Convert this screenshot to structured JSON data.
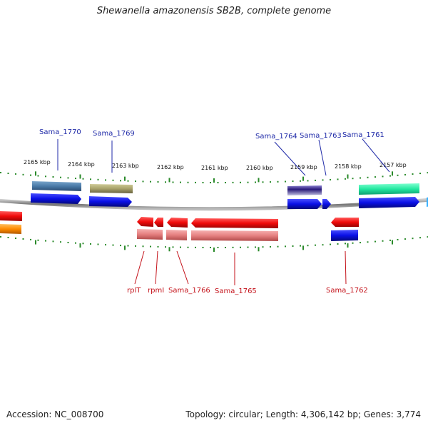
{
  "title": "Shewanella amazonensis SB2B, complete genome",
  "footer": {
    "accession": "Accession: NC_008700",
    "summary": "Topology: circular; Length: 4,306,142 bp; Genes: 3,774"
  },
  "kbp_labels": [
    "2165 kbp",
    "2164 kbp",
    "2163 kbp",
    "2162 kbp",
    "2161 kbp",
    "2160 kbp",
    "2159 kbp",
    "2158 kbp",
    "2157 kbp"
  ],
  "gene_labels_top": [
    "Sama_1770",
    "Sama_1769",
    "Sama_1764",
    "Sama_1763",
    "Sama_1761"
  ],
  "gene_labels_bottom": [
    "rplT",
    "rpmI",
    "Sama_1766",
    "Sama_1765",
    "Sama_1762"
  ],
  "colors": {
    "cds_blue": "#0a10e6",
    "cds_red": "#f00a0a",
    "steelblue": "#4a7aa8",
    "olive": "#a8a26a",
    "purple": "#5c4aa0",
    "green": "#22e8a0",
    "pink": "#e57f7f",
    "orange": "#ff8a00",
    "tick": "#2a8a2a",
    "backbone": "#888888"
  }
}
